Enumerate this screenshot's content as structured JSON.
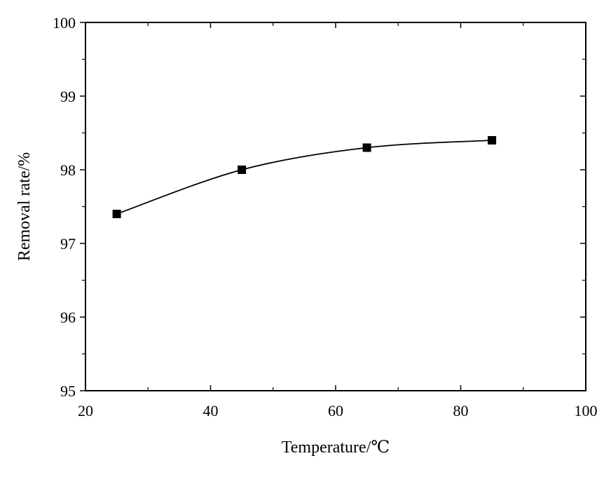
{
  "chart_data": {
    "type": "line",
    "title": "",
    "xlabel": "Temperature/℃",
    "ylabel": "Removal rate/%",
    "xlim": [
      20,
      100
    ],
    "ylim": [
      95,
      100
    ],
    "xticks": [
      20,
      40,
      60,
      80,
      100
    ],
    "yticks": [
      95,
      96,
      97,
      98,
      99,
      100
    ],
    "grid": false,
    "marker": "square",
    "series": [
      {
        "x": [
          25,
          45,
          65,
          85
        ],
        "y": [
          97.4,
          98.0,
          98.3,
          98.4
        ]
      }
    ]
  },
  "colors": {
    "line": "#000000",
    "marker": "#000000",
    "background": "#ffffff"
  }
}
